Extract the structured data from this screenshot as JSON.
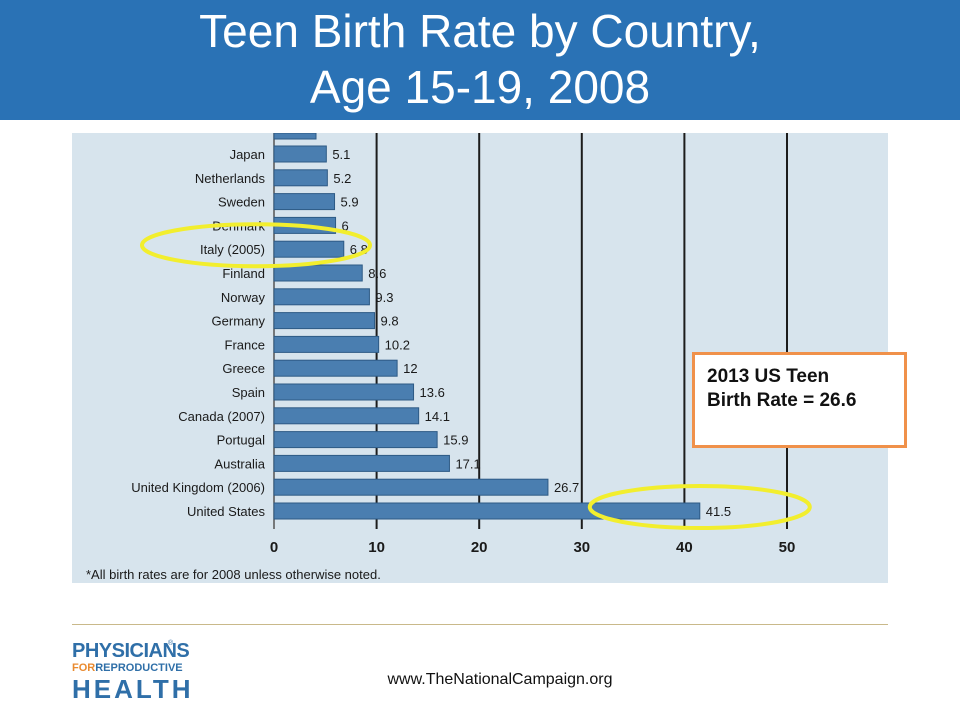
{
  "header": {
    "title_line1": "Teen Birth Rate by Country,",
    "title_line2": "Age 15-19, 2008"
  },
  "chart_data": {
    "type": "bar",
    "orientation": "horizontal",
    "categories": [
      "Japan",
      "Netherlands",
      "Sweden",
      "Denmark",
      "Italy (2005)",
      "Finland",
      "Norway",
      "Germany",
      "France",
      "Greece",
      "Spain",
      "Canada (2007)",
      "Portugal",
      "Australia",
      "United Kingdom (2006)",
      "United States"
    ],
    "values": [
      5.1,
      5.2,
      5.9,
      6,
      6.8,
      8.6,
      9.3,
      9.8,
      10.2,
      12,
      13.6,
      14.1,
      15.9,
      17.1,
      26.7,
      41.5
    ],
    "value_labels": [
      "5.1",
      "5.2",
      "5.9",
      "6",
      "6.8",
      "8.6",
      "9.3",
      "9.8",
      "10.2",
      "12",
      "13.6",
      "14.1",
      "15.9",
      "17.1",
      "26.7",
      "41.5"
    ],
    "xlim": [
      0,
      50
    ],
    "xticks": [
      "0",
      "10",
      "20",
      "30",
      "40",
      "50"
    ],
    "grid": true,
    "bar_color": "#4a7eb0",
    "highlighted": [
      "Italy (2005)",
      "United States"
    ],
    "highlight_color": "#f2ee2e",
    "footnote": "*All birth rates are for 2008 unless otherwise noted."
  },
  "callout": {
    "line1": "2013 US Teen",
    "line2": "Birth Rate = 26.6",
    "border_color": "#f0914a"
  },
  "logo": {
    "line1": "PHYSICIANS",
    "line2_for": "FOR",
    "line2_rest": "REPRODUCTIVE",
    "line3": "HEALTH",
    "registered": "®"
  },
  "footer": {
    "url": "www.TheNationalCampaign.org"
  },
  "colors": {
    "header_bg": "#2a72b5",
    "chart_bg": "#d7e4ed"
  }
}
